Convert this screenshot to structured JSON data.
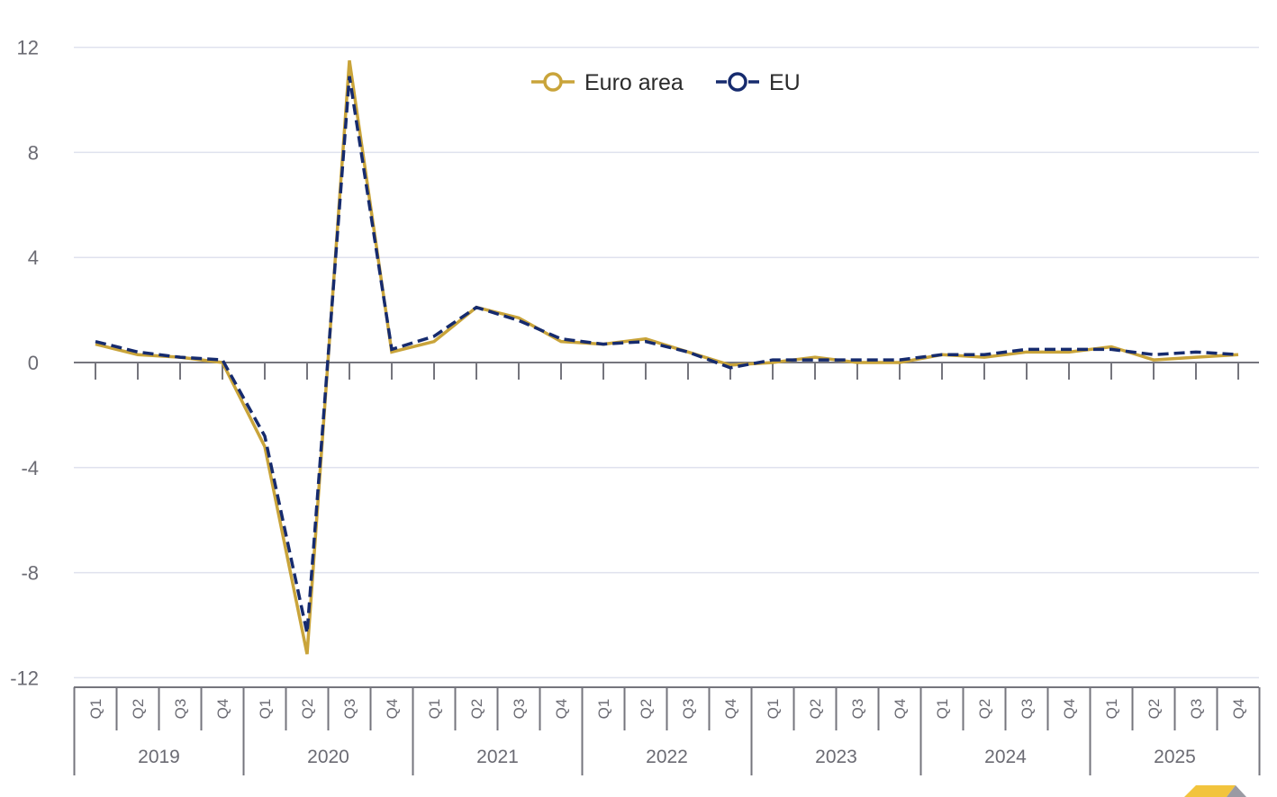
{
  "chart_data": {
    "type": "line",
    "title": "",
    "xlabel": "",
    "ylabel": "",
    "ylim": [
      -12,
      12
    ],
    "yticks": [
      12,
      8,
      4,
      0,
      -4,
      -8,
      -12
    ],
    "grid": true,
    "legend_position": "top-center",
    "years": [
      "2019",
      "2020",
      "2021",
      "2022",
      "2023",
      "2024",
      "2025"
    ],
    "quarters": [
      "Q1",
      "Q2",
      "Q3",
      "Q4"
    ],
    "categories": [
      "2019 Q1",
      "2019 Q2",
      "2019 Q3",
      "2019 Q4",
      "2020 Q1",
      "2020 Q2",
      "2020 Q3",
      "2020 Q4",
      "2021 Q1",
      "2021 Q2",
      "2021 Q3",
      "2021 Q4",
      "2022 Q1",
      "2022 Q2",
      "2022 Q3",
      "2022 Q4",
      "2023 Q1",
      "2023 Q2",
      "2023 Q3",
      "2023 Q4",
      "2024 Q1",
      "2024 Q2",
      "2024 Q3",
      "2024 Q4",
      "2025 Q1",
      "2025 Q2",
      "2025 Q3",
      "2025 Q4"
    ],
    "series": [
      {
        "name": "Euro area",
        "color": "#c9a43a",
        "style": "solid",
        "values": [
          0.7,
          0.3,
          0.2,
          0.0,
          -3.2,
          -11.1,
          11.5,
          0.4,
          0.8,
          2.1,
          1.7,
          0.8,
          0.7,
          0.9,
          0.4,
          -0.1,
          0.0,
          0.2,
          0.0,
          0.0,
          0.3,
          0.2,
          0.4,
          0.4,
          0.6,
          0.1,
          0.2,
          0.3
        ]
      },
      {
        "name": "EU",
        "color": "#162b6e",
        "style": "dashed",
        "values": [
          0.8,
          0.4,
          0.2,
          0.1,
          -2.8,
          -10.3,
          10.9,
          0.5,
          1.0,
          2.1,
          1.6,
          0.9,
          0.7,
          0.8,
          0.4,
          -0.2,
          0.1,
          0.1,
          0.1,
          0.1,
          0.3,
          0.3,
          0.5,
          0.5,
          0.5,
          0.3,
          0.4,
          0.3
        ]
      }
    ]
  },
  "legend": {
    "items": [
      {
        "label": "Euro area"
      },
      {
        "label": "EU"
      }
    ]
  }
}
